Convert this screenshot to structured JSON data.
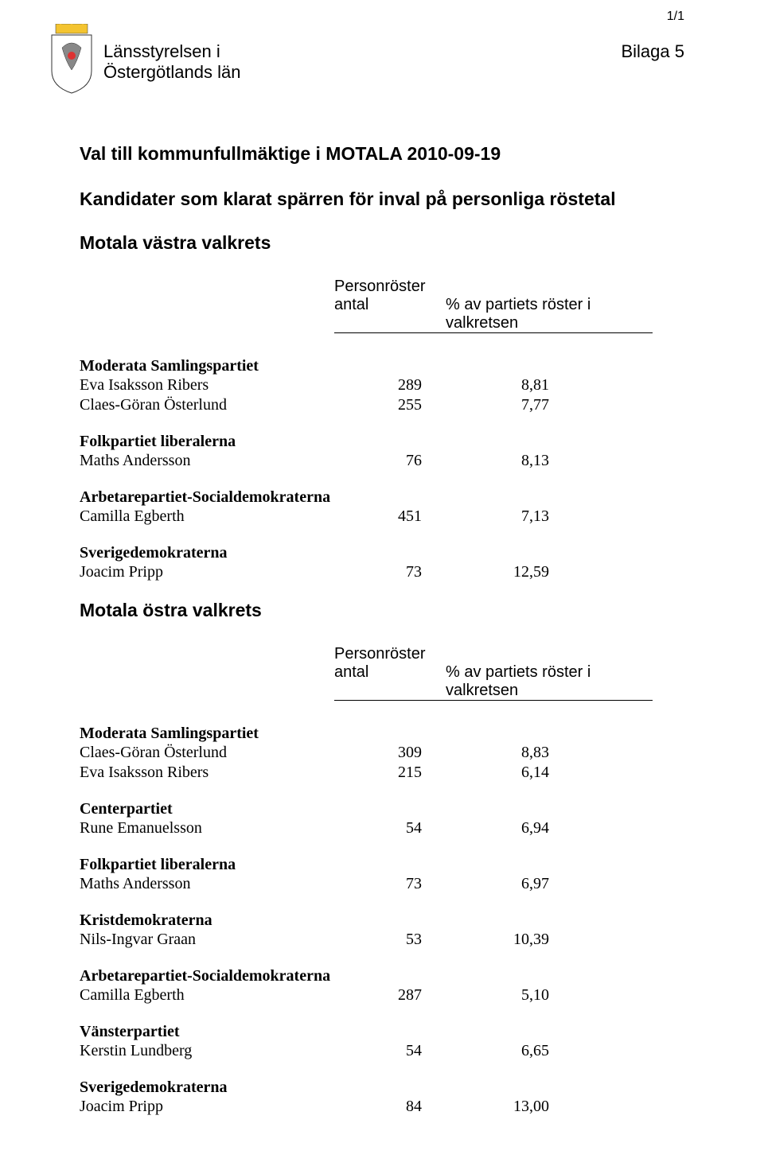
{
  "page_num": "1/1",
  "bilaga": "Bilaga 5",
  "authority_line1": "Länsstyrelsen i",
  "authority_line2": "Östergötlands län",
  "title": "Val till kommunfullmäktige i MOTALA 2010-09-19",
  "subtitle": "Kandidater som klarat spärren för inval på personliga röstetal",
  "col_top": "Personröster",
  "col_b1": "antal",
  "col_b2": "% av partiets röster i valkretsen",
  "district1": {
    "name": "Motala västra valkrets",
    "groups": [
      {
        "party": "Moderata Samlingspartiet",
        "rows": [
          {
            "name": "Eva Isaksson Ribers",
            "v1": "289",
            "v2": "8,81"
          },
          {
            "name": "Claes-Göran Österlund",
            "v1": "255",
            "v2": "7,77"
          }
        ]
      },
      {
        "party": "Folkpartiet liberalerna",
        "rows": [
          {
            "name": "Maths Andersson",
            "v1": "76",
            "v2": "8,13"
          }
        ]
      },
      {
        "party": "Arbetarepartiet-Socialdemokraterna",
        "rows": [
          {
            "name": "Camilla Egberth",
            "v1": "451",
            "v2": "7,13"
          }
        ]
      },
      {
        "party": "Sverigedemokraterna",
        "rows": [
          {
            "name": "Joacim Pripp",
            "v1": "73",
            "v2": "12,59"
          }
        ]
      }
    ]
  },
  "district2": {
    "name": "Motala östra valkrets",
    "groups": [
      {
        "party": "Moderata Samlingspartiet",
        "rows": [
          {
            "name": "Claes-Göran Österlund",
            "v1": "309",
            "v2": "8,83"
          },
          {
            "name": "Eva Isaksson Ribers",
            "v1": "215",
            "v2": "6,14"
          }
        ]
      },
      {
        "party": "Centerpartiet",
        "rows": [
          {
            "name": "Rune Emanuelsson",
            "v1": "54",
            "v2": "6,94"
          }
        ]
      },
      {
        "party": "Folkpartiet liberalerna",
        "rows": [
          {
            "name": "Maths Andersson",
            "v1": "73",
            "v2": "6,97"
          }
        ]
      },
      {
        "party": "Kristdemokraterna",
        "rows": [
          {
            "name": "Nils-Ingvar Graan",
            "v1": "53",
            "v2": "10,39"
          }
        ]
      },
      {
        "party": "Arbetarepartiet-Socialdemokraterna",
        "rows": [
          {
            "name": "Camilla Egberth",
            "v1": "287",
            "v2": "5,10"
          }
        ]
      },
      {
        "party": "Vänsterpartiet",
        "rows": [
          {
            "name": "Kerstin Lundberg",
            "v1": "54",
            "v2": "6,65"
          }
        ]
      },
      {
        "party": "Sverigedemokraterna",
        "rows": [
          {
            "name": "Joacim Pripp",
            "v1": "84",
            "v2": "13,00"
          }
        ]
      }
    ]
  }
}
